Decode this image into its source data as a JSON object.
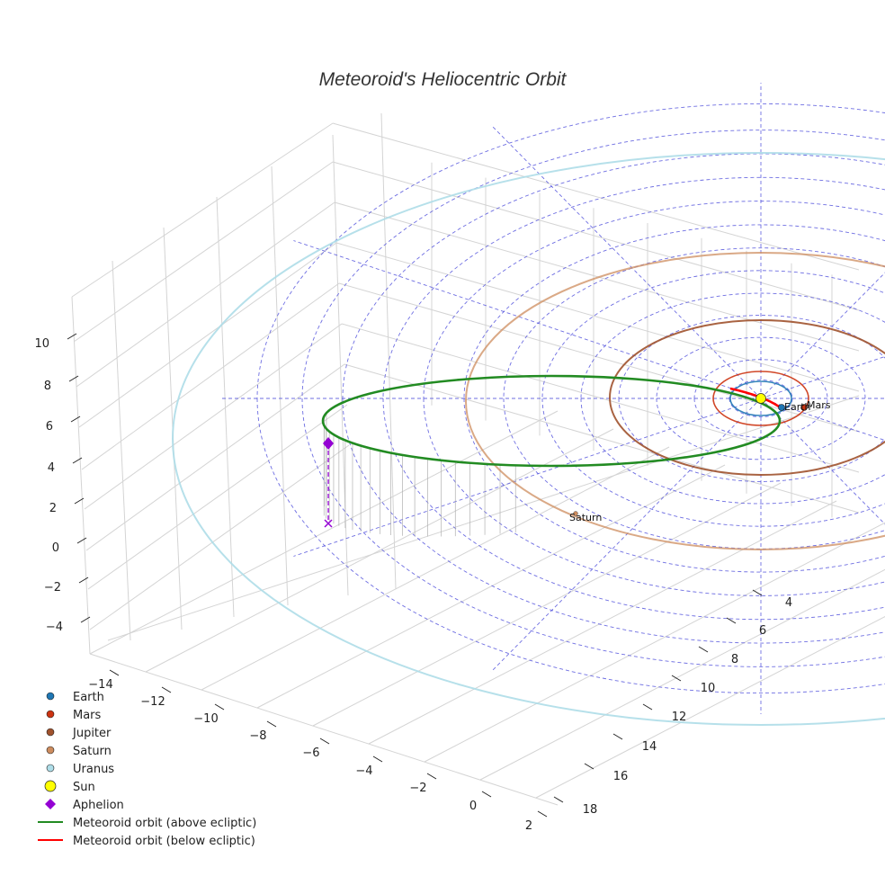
{
  "chart_data": {
    "type": "line",
    "projection": "3d",
    "title": "Meteoroid's Heliocentric Orbit",
    "xlabel": "",
    "ylabel": "",
    "zlabel": "",
    "x_ticks": [
      "−14",
      "−12",
      "−10",
      "−8",
      "−6",
      "−4",
      "−2",
      "0",
      "2"
    ],
    "y_ticks": [
      "4",
      "6",
      "8",
      "10",
      "12",
      "14",
      "16",
      "18"
    ],
    "z_ticks": [
      "10",
      "8",
      "6",
      "4",
      "2",
      "0",
      "−2",
      "−4"
    ],
    "xlim": [
      -15,
      2
    ],
    "ylim": [
      3,
      19
    ],
    "zlim": [
      -5,
      11
    ],
    "grid": true,
    "legend_position": "bottom-left",
    "colors": {
      "earth": "#1f77b4",
      "mars": "#cc3311",
      "jupiter": "#a0522d",
      "saturn": "#cd8c5e",
      "uranus": "#aedde8",
      "sun": "#ffff00",
      "aphelion": "#9400d3",
      "orbit_above": "#228b22",
      "orbit_below": "#ff0000",
      "ecliptic_grid": "#5555dd"
    },
    "planets": [
      {
        "name": "Earth",
        "a": 1.0,
        "show_label": true
      },
      {
        "name": "Mars",
        "a": 1.52,
        "show_label": true
      },
      {
        "name": "Jupiter",
        "a": 5.2,
        "show_label": false
      },
      {
        "name": "Saturn",
        "a": 9.54,
        "show_label": true
      },
      {
        "name": "Uranus",
        "a": 19.2,
        "show_label": false
      }
    ],
    "meteoroid": {
      "perihelion_au": 0.9,
      "aphelion_au": 13.2,
      "aphelion_point": {
        "x": -12.7,
        "y": 8.1,
        "z": 3.8
      },
      "aphelion_projection": {
        "x": -12.7,
        "y": 8.1,
        "z": 0
      }
    },
    "legend": [
      {
        "label": "Earth",
        "marker": "circle",
        "color": "#1f77b4"
      },
      {
        "label": "Mars",
        "marker": "circle",
        "color": "#cc3311"
      },
      {
        "label": "Jupiter",
        "marker": "circle",
        "color": "#a0522d"
      },
      {
        "label": "Saturn",
        "marker": "circle",
        "color": "#cd8c5e"
      },
      {
        "label": "Uranus",
        "marker": "circle",
        "color": "#aedde8"
      },
      {
        "label": "Sun",
        "marker": "circle-large",
        "color": "#ffff00"
      },
      {
        "label": "Aphelion",
        "marker": "diamond",
        "color": "#9400d3"
      },
      {
        "label": "Meteoroid orbit (above ecliptic)",
        "marker": "line",
        "color": "#228b22"
      },
      {
        "label": "Meteoroid orbit (below ecliptic)",
        "marker": "line",
        "color": "#ff0000"
      }
    ]
  }
}
